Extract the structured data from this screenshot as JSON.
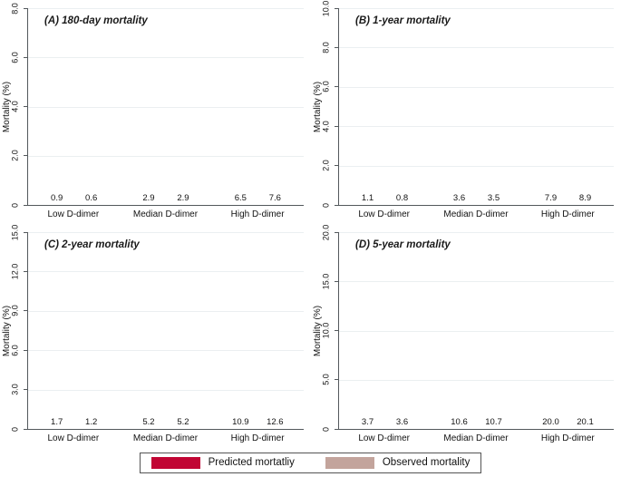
{
  "figure": {
    "ylabel": "Mortality (%)",
    "categories": [
      "Low D-dimer",
      "Median D-dimer",
      "High D-dimer"
    ],
    "colors": {
      "predicted": "#c10534",
      "observed": "#c3a49c",
      "axis": "#53585c",
      "gridline": "#ebeff1",
      "legend_border": "#545454"
    },
    "legend": {
      "position": "bottom-center",
      "items": [
        {
          "label": "Predicted mortatliy",
          "color": "#c10534"
        },
        {
          "label": "Observed mortality",
          "color": "#c3a49c"
        }
      ]
    }
  },
  "chart_data": [
    {
      "type": "bar",
      "panel": "A",
      "title": "(A) 180-day mortality",
      "categories": [
        "Low D-dimer",
        "Median D-dimer",
        "High D-dimer"
      ],
      "series": [
        {
          "name": "Predicted mortatliy",
          "values": [
            0.9,
            2.9,
            6.5
          ]
        },
        {
          "name": "Observed mortality",
          "values": [
            0.6,
            2.9,
            7.6
          ]
        }
      ],
      "xlabel": "",
      "ylabel": "Mortality (%)",
      "ylim": [
        0,
        8
      ],
      "yticks": [
        "0",
        "2.0",
        "4.0",
        "6.0",
        "8.0"
      ],
      "grid": true,
      "bar_labels": true
    },
    {
      "type": "bar",
      "panel": "B",
      "title": "(B) 1-year mortality",
      "categories": [
        "Low D-dimer",
        "Median D-dimer",
        "High D-dimer"
      ],
      "series": [
        {
          "name": "Predicted mortatliy",
          "values": [
            1.1,
            3.6,
            7.9
          ]
        },
        {
          "name": "Observed mortality",
          "values": [
            0.8,
            3.5,
            8.9
          ]
        }
      ],
      "xlabel": "",
      "ylabel": "Mortality (%)",
      "ylim": [
        0,
        10
      ],
      "yticks": [
        "0",
        "2.0",
        "4.0",
        "6.0",
        "8.0",
        "10.0"
      ],
      "grid": true,
      "bar_labels": true
    },
    {
      "type": "bar",
      "panel": "C",
      "title": "(C) 2-year mortality",
      "categories": [
        "Low D-dimer",
        "Median D-dimer",
        "High D-dimer"
      ],
      "series": [
        {
          "name": "Predicted mortatliy",
          "values": [
            1.7,
            5.2,
            10.9
          ]
        },
        {
          "name": "Observed mortality",
          "values": [
            1.2,
            5.2,
            12.6
          ]
        }
      ],
      "xlabel": "",
      "ylabel": "Mortality (%)",
      "ylim": [
        0,
        15
      ],
      "yticks": [
        "0",
        "3.0",
        "6.0",
        "9.0",
        "12.0",
        "15.0"
      ],
      "grid": true,
      "bar_labels": true
    },
    {
      "type": "bar",
      "panel": "D",
      "title": "(D) 5-year mortality",
      "categories": [
        "Low D-dimer",
        "Median D-dimer",
        "High D-dimer"
      ],
      "series": [
        {
          "name": "Predicted mortatliy",
          "values": [
            3.7,
            10.6,
            20.0
          ]
        },
        {
          "name": "Observed mortality",
          "values": [
            3.6,
            10.7,
            20.1
          ]
        }
      ],
      "xlabel": "",
      "ylabel": "Mortality (%)",
      "ylim": [
        0,
        20
      ],
      "yticks": [
        "0",
        "5.0",
        "10.0",
        "15.0",
        "20.0"
      ],
      "grid": true,
      "bar_labels": true
    }
  ]
}
